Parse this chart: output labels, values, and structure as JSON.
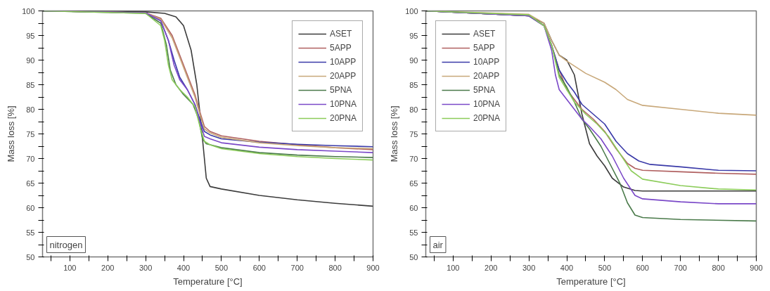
{
  "chart_data": [
    {
      "type": "line",
      "xlabel": "Temperature [°C]",
      "ylabel": "Mass loss [%]",
      "annotations": [
        "nitrogen"
      ],
      "legend": "top right",
      "grid": false,
      "line_style": "solid",
      "marker": "none",
      "xlim": [
        28,
        900
      ],
      "ylim": [
        50,
        100
      ],
      "xticks": [
        {
          "value": 50,
          "label": null
        },
        100,
        {
          "value": 150,
          "label": null
        },
        200,
        {
          "value": 250,
          "label": null
        },
        300,
        {
          "value": 350,
          "label": null
        },
        400,
        {
          "value": 450,
          "label": null
        },
        500,
        {
          "value": 550,
          "label": null
        },
        600,
        {
          "value": 650,
          "label": null
        },
        700,
        {
          "value": 750,
          "label": null
        },
        800,
        {
          "value": 850,
          "label": null
        },
        900
      ],
      "yticks": [
        50,
        {
          "value": 52.5,
          "label": null
        },
        55,
        {
          "value": 57.5,
          "label": null
        },
        60,
        {
          "value": 62.5,
          "label": null
        },
        65,
        {
          "value": 67.5,
          "label": null
        },
        70,
        {
          "value": 72.5,
          "label": null
        },
        75,
        {
          "value": 77.5,
          "label": null
        },
        80,
        {
          "value": 82.5,
          "label": null
        },
        85,
        {
          "value": 87.5,
          "label": null
        },
        90,
        {
          "value": 92.5,
          "label": null
        },
        95,
        {
          "value": 97.5,
          "label": null
        },
        100
      ],
      "series": [
        {
          "name": "ASET",
          "color": "#3c3c3c",
          "x": [
            28,
            300,
            350,
            380,
            400,
            420,
            435,
            445,
            455,
            460,
            470,
            500,
            600,
            700,
            800,
            900
          ],
          "values": [
            100,
            99.8,
            99.5,
            98.8,
            97,
            92,
            85,
            78,
            70,
            66,
            64.3,
            63.8,
            62.5,
            61.6,
            60.9,
            60.3
          ]
        },
        {
          "name": "5APP",
          "color": "#b06060",
          "x": [
            28,
            300,
            340,
            370,
            390,
            410,
            430,
            445,
            455,
            470,
            500,
            600,
            700,
            800,
            900
          ],
          "values": [
            100,
            99.6,
            98.5,
            95,
            91,
            87,
            83,
            79,
            76.5,
            75.5,
            74.6,
            73.5,
            72.8,
            72.2,
            71.8
          ]
        },
        {
          "name": "10APP",
          "color": "#3a3aa8",
          "x": [
            28,
            300,
            340,
            360,
            375,
            390,
            410,
            430,
            445,
            455,
            470,
            500,
            600,
            700,
            800,
            900
          ],
          "values": [
            100,
            99.6,
            98,
            94,
            90,
            86.5,
            84,
            81,
            77.5,
            75.5,
            74.8,
            74,
            73.3,
            72.9,
            72.6,
            72.4
          ]
        },
        {
          "name": "20APP",
          "color": "#c8a87a",
          "x": [
            28,
            300,
            340,
            370,
            390,
            410,
            430,
            445,
            455,
            470,
            500,
            600,
            700,
            800,
            900
          ],
          "values": [
            100,
            99.6,
            98.3,
            94.5,
            90.5,
            86.5,
            82.5,
            78.5,
            76,
            75.2,
            74.3,
            73.2,
            72.6,
            72.2,
            72
          ]
        },
        {
          "name": "5PNA",
          "color": "#4a7a4a",
          "x": [
            28,
            300,
            340,
            355,
            365,
            380,
            400,
            425,
            440,
            450,
            460,
            500,
            600,
            700,
            800,
            900
          ],
          "values": [
            100,
            99.5,
            97.5,
            93,
            88,
            85,
            83,
            81,
            78,
            74,
            73,
            72.2,
            71.2,
            70.7,
            70.4,
            70.2
          ]
        },
        {
          "name": "10PNA",
          "color": "#7a48c8",
          "x": [
            28,
            300,
            340,
            360,
            375,
            390,
            410,
            430,
            445,
            455,
            470,
            500,
            600,
            700,
            800,
            900
          ],
          "values": [
            100,
            99.6,
            98,
            94,
            89,
            86,
            84,
            81,
            77,
            74.5,
            74,
            73.2,
            72.3,
            71.8,
            71.5,
            71.2
          ]
        },
        {
          "name": "20PNA",
          "color": "#8ccc5a",
          "x": [
            28,
            300,
            340,
            350,
            360,
            370,
            390,
            410,
            430,
            445,
            455,
            470,
            500,
            600,
            700,
            800,
            900
          ],
          "values": [
            100,
            99.5,
            97,
            94,
            89,
            86,
            84,
            82.5,
            80.5,
            76,
            73.5,
            72.8,
            72,
            71,
            70.4,
            70,
            69.7
          ]
        }
      ]
    },
    {
      "type": "line",
      "xlabel": "Temperature [°C]",
      "ylabel": "Mass loss [%]",
      "annotations": [
        "air"
      ],
      "legend": "top left",
      "grid": false,
      "line_style": "solid",
      "marker": "none",
      "xlim": [
        28,
        900
      ],
      "ylim": [
        50,
        100
      ],
      "xticks": [
        {
          "value": 50,
          "label": null
        },
        100,
        {
          "value": 150,
          "label": null
        },
        200,
        {
          "value": 250,
          "label": null
        },
        300,
        {
          "value": 350,
          "label": null
        },
        400,
        {
          "value": 450,
          "label": null
        },
        500,
        {
          "value": 550,
          "label": null
        },
        600,
        {
          "value": 650,
          "label": null
        },
        700,
        {
          "value": 750,
          "label": null
        },
        800,
        {
          "value": 850,
          "label": null
        },
        900
      ],
      "yticks": [
        50,
        {
          "value": 52.5,
          "label": null
        },
        55,
        {
          "value": 57.5,
          "label": null
        },
        60,
        {
          "value": 62.5,
          "label": null
        },
        65,
        {
          "value": 67.5,
          "label": null
        },
        70,
        {
          "value": 72.5,
          "label": null
        },
        75,
        {
          "value": 77.5,
          "label": null
        },
        80,
        {
          "value": 82.5,
          "label": null
        },
        85,
        {
          "value": 87.5,
          "label": null
        },
        90,
        {
          "value": 92.5,
          "label": null
        },
        95,
        {
          "value": 97.5,
          "label": null
        },
        100
      ],
      "series": [
        {
          "name": "ASET",
          "color": "#3c3c3c",
          "x": [
            28,
            300,
            340,
            360,
            380,
            400,
            420,
            440,
            460,
            480,
            500,
            520,
            550,
            580,
            600,
            900
          ],
          "values": [
            100,
            99,
            97.5,
            94,
            91,
            90,
            87,
            79,
            73,
            70.5,
            68.5,
            66,
            64.2,
            63.5,
            63.4,
            63.4
          ]
        },
        {
          "name": "5APP",
          "color": "#b06060",
          "x": [
            28,
            300,
            340,
            360,
            380,
            400,
            420,
            440,
            470,
            500,
            530,
            560,
            580,
            600,
            700,
            800,
            900
          ],
          "values": [
            100,
            99,
            97,
            93,
            88,
            84,
            82,
            80,
            78,
            75.5,
            72,
            69,
            68,
            67.6,
            67.3,
            67,
            66.8
          ]
        },
        {
          "name": "10APP",
          "color": "#3a3aa8",
          "x": [
            28,
            300,
            340,
            360,
            380,
            400,
            420,
            440,
            470,
            500,
            530,
            560,
            590,
            620,
            700,
            800,
            900
          ],
          "values": [
            100,
            99,
            97,
            93,
            88,
            85.5,
            83.5,
            81,
            79,
            77,
            73.5,
            71,
            69.5,
            68.8,
            68.3,
            67.6,
            67.5
          ]
        },
        {
          "name": "20APP",
          "color": "#c8a87a",
          "x": [
            28,
            300,
            340,
            360,
            380,
            400,
            450,
            500,
            530,
            560,
            600,
            700,
            800,
            900
          ],
          "values": [
            100,
            99.3,
            97.5,
            94,
            91,
            89.8,
            87.3,
            85.5,
            84,
            82,
            80.8,
            80,
            79.2,
            78.8
          ]
        },
        {
          "name": "5PNA",
          "color": "#4a7a4a",
          "x": [
            28,
            300,
            340,
            360,
            380,
            400,
            420,
            440,
            460,
            490,
            520,
            540,
            560,
            580,
            600,
            700,
            900
          ],
          "values": [
            100,
            99,
            97,
            93,
            87,
            84.5,
            81.5,
            78,
            76,
            72.5,
            68,
            65,
            61,
            58.5,
            58,
            57.6,
            57.3
          ]
        },
        {
          "name": "10PNA",
          "color": "#7a48c8",
          "x": [
            28,
            300,
            340,
            360,
            370,
            380,
            400,
            420,
            440,
            460,
            490,
            520,
            550,
            580,
            600,
            700,
            800,
            900
          ],
          "values": [
            100,
            99,
            97,
            92,
            87,
            84,
            82,
            80,
            78,
            76.5,
            74,
            70.5,
            66,
            62.5,
            61.8,
            61.2,
            60.8,
            60.8
          ]
        },
        {
          "name": "20PNA",
          "color": "#8ccc5a",
          "x": [
            28,
            300,
            340,
            360,
            380,
            400,
            420,
            450,
            480,
            510,
            540,
            570,
            600,
            700,
            800,
            900
          ],
          "values": [
            100,
            99.2,
            97,
            93,
            86.5,
            84,
            81.5,
            79,
            77,
            74.5,
            71,
            67.5,
            65.8,
            64.5,
            63.8,
            63.6
          ]
        }
      ]
    }
  ]
}
